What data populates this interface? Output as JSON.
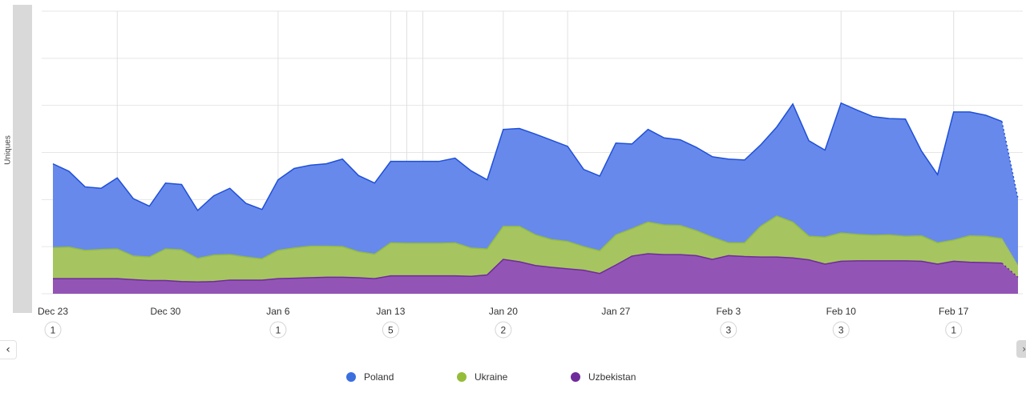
{
  "y_axis_label": "Uniques",
  "nav": {
    "prev_icon": "chevron-left-icon",
    "next_icon": "chevron-right-icon",
    "prev_glyph": "‹",
    "next_glyph": "›"
  },
  "legend": [
    {
      "label": "Poland",
      "color": "#3b6fe0"
    },
    {
      "label": "Ukraine",
      "color": "#95bd3a"
    },
    {
      "label": "Uzbekistan",
      "color": "#6f2a9c"
    }
  ],
  "chart_data": {
    "type": "area",
    "stacked": true,
    "grid": true,
    "legend_position": "bottom",
    "ylim": [
      0,
      6
    ],
    "xlabel": "",
    "ylabel": "Uniques",
    "x_ticks": [
      {
        "label": "Dec 23",
        "index": 0
      },
      {
        "label": "Dec 30",
        "index": 7
      },
      {
        "label": "Jan 6",
        "index": 14
      },
      {
        "label": "Jan 13",
        "index": 21
      },
      {
        "label": "Jan 20",
        "index": 28
      },
      {
        "label": "Jan 27",
        "index": 35
      },
      {
        "label": "Feb 3",
        "index": 42
      },
      {
        "label": "Feb 10",
        "index": 49
      },
      {
        "label": "Feb 17",
        "index": 56
      }
    ],
    "annotations": [
      {
        "index": 0,
        "label": "1"
      },
      {
        "index": 14,
        "label": "1"
      },
      {
        "index": 21,
        "label": "5"
      },
      {
        "index": 28,
        "label": "2"
      },
      {
        "index": 42,
        "label": "3"
      },
      {
        "index": 49,
        "label": "3"
      },
      {
        "index": 56,
        "label": "1"
      }
    ],
    "event_lines": [
      4,
      14,
      21,
      22,
      23,
      28,
      32,
      49,
      56
    ],
    "partial_last_point": true,
    "series": [
      {
        "name": "Uzbekistan",
        "color": "#6f2a9c",
        "fill": "#9255b5",
        "values": [
          0.32,
          0.32,
          0.32,
          0.32,
          0.32,
          0.3,
          0.28,
          0.28,
          0.26,
          0.25,
          0.26,
          0.29,
          0.29,
          0.29,
          0.32,
          0.33,
          0.34,
          0.35,
          0.35,
          0.34,
          0.32,
          0.38,
          0.38,
          0.38,
          0.38,
          0.38,
          0.37,
          0.4,
          0.73,
          0.68,
          0.6,
          0.56,
          0.53,
          0.5,
          0.43,
          0.61,
          0.8,
          0.85,
          0.83,
          0.83,
          0.81,
          0.73,
          0.81,
          0.79,
          0.78,
          0.78,
          0.76,
          0.72,
          0.63,
          0.69,
          0.7,
          0.7,
          0.7,
          0.7,
          0.69,
          0.63,
          0.69,
          0.67,
          0.66,
          0.65,
          0.35
        ]
      },
      {
        "name": "Ukraine",
        "color": "#95bd3a",
        "fill": "#a6c560",
        "values": [
          0.66,
          0.67,
          0.6,
          0.62,
          0.63,
          0.5,
          0.5,
          0.67,
          0.67,
          0.5,
          0.56,
          0.54,
          0.49,
          0.45,
          0.6,
          0.64,
          0.67,
          0.66,
          0.65,
          0.55,
          0.52,
          0.7,
          0.69,
          0.69,
          0.69,
          0.7,
          0.6,
          0.55,
          0.7,
          0.75,
          0.65,
          0.59,
          0.58,
          0.5,
          0.48,
          0.64,
          0.58,
          0.67,
          0.63,
          0.62,
          0.53,
          0.47,
          0.27,
          0.29,
          0.65,
          0.87,
          0.76,
          0.5,
          0.57,
          0.6,
          0.56,
          0.54,
          0.55,
          0.52,
          0.54,
          0.45,
          0.45,
          0.56,
          0.56,
          0.52,
          0.25
        ]
      },
      {
        "name": "Poland",
        "color": "#1f50d6",
        "fill": "#6789ec",
        "values": [
          1.78,
          1.61,
          1.35,
          1.3,
          1.51,
          1.22,
          1.08,
          1.4,
          1.39,
          1.02,
          1.26,
          1.41,
          1.14,
          1.05,
          1.5,
          1.69,
          1.72,
          1.75,
          1.86,
          1.62,
          1.51,
          1.73,
          1.74,
          1.74,
          1.74,
          1.8,
          1.64,
          1.47,
          2.06,
          2.08,
          2.14,
          2.11,
          2.02,
          1.64,
          1.59,
          1.95,
          1.8,
          1.97,
          1.85,
          1.82,
          1.77,
          1.71,
          1.78,
          1.76,
          1.73,
          1.89,
          2.51,
          2.03,
          1.85,
          2.76,
          2.64,
          2.52,
          2.47,
          2.49,
          1.8,
          1.45,
          2.72,
          2.63,
          2.57,
          2.49,
          1.42
        ]
      }
    ]
  }
}
